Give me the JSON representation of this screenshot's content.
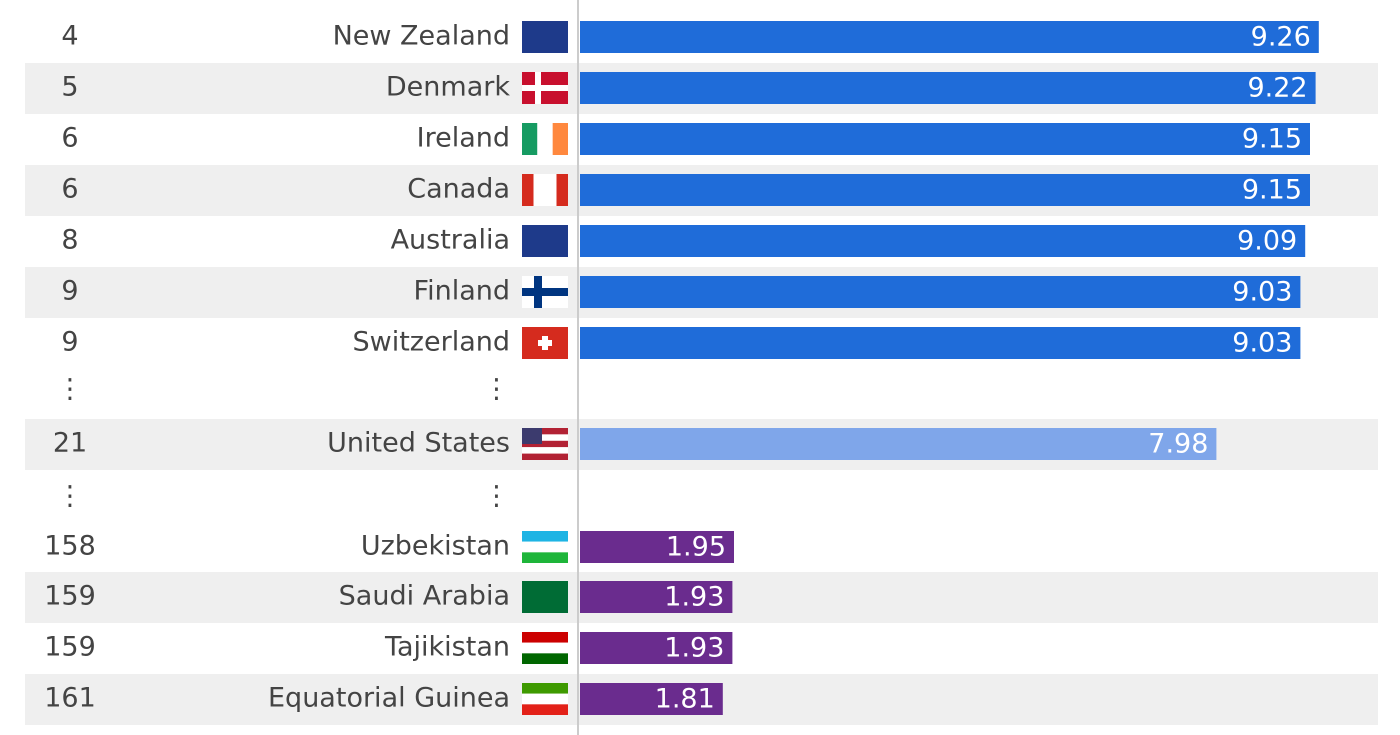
{
  "chart_data": {
    "type": "bar",
    "xlim": [
      0,
      10
    ],
    "rows": [
      {
        "rank": "4",
        "country": "New Zealand",
        "value": 9.26,
        "color": "#1f6cd9"
      },
      {
        "rank": "5",
        "country": "Denmark",
        "value": 9.22,
        "color": "#1f6cd9"
      },
      {
        "rank": "6",
        "country": "Ireland",
        "value": 9.15,
        "color": "#1f6cd9"
      },
      {
        "rank": "6",
        "country": "Canada",
        "value": 9.15,
        "color": "#1f6cd9"
      },
      {
        "rank": "8",
        "country": "Australia",
        "value": 9.09,
        "color": "#1f6cd9"
      },
      {
        "rank": "9",
        "country": "Finland",
        "value": 9.03,
        "color": "#1f6cd9"
      },
      {
        "rank": "9",
        "country": "Switzerland",
        "value": 9.03,
        "color": "#1f6cd9"
      },
      {
        "rank": "⋮",
        "country": "⋮"
      },
      {
        "rank": "21",
        "country": "United States",
        "value": 7.98,
        "color": "#7fa6ea"
      },
      {
        "rank": "⋮",
        "country": "⋮"
      },
      {
        "rank": "158",
        "country": "Uzbekistan",
        "value": 1.95,
        "color": "#6a2c8e"
      },
      {
        "rank": "159",
        "country": "Saudi Arabia",
        "value": 1.93,
        "color": "#6a2c8e"
      },
      {
        "rank": "159",
        "country": "Tajikistan",
        "value": 1.93,
        "color": "#6a2c8e"
      },
      {
        "rank": "161",
        "country": "Equatorial Guinea",
        "value": 1.81,
        "color": "#6a2c8e"
      }
    ]
  }
}
